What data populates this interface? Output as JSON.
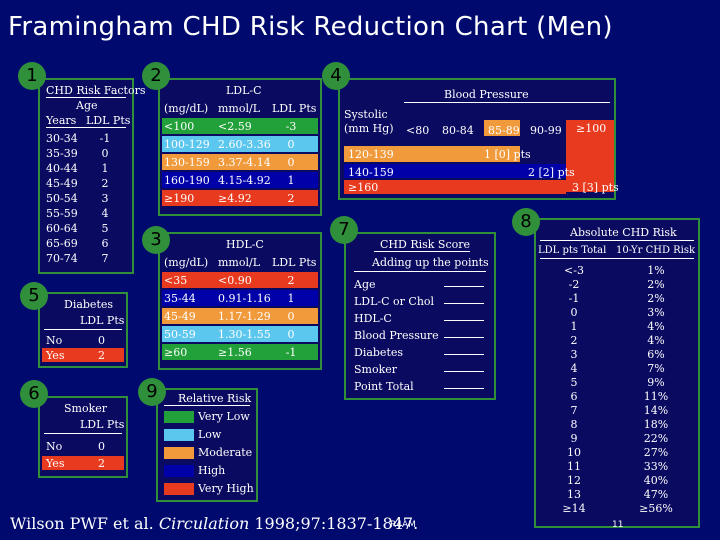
{
  "title": "Framingham CHD Risk Reduction Chart (Men)",
  "colors": {
    "very_low": "#22a03a",
    "low": "#5bc6ee",
    "moderate": "#f09a3c",
    "high": "#0000a8",
    "very_high": "#e83a1e"
  },
  "badges": [
    "1",
    "2",
    "3",
    "4",
    "5",
    "6",
    "7",
    "8",
    "9"
  ],
  "box1": {
    "heading": "CHD Risk Factors",
    "sub": "Age",
    "col1": "Years",
    "col2": "LDL Pts",
    "rows": [
      {
        "age": "30-34",
        "pts": "-1"
      },
      {
        "age": "35-39",
        "pts": "0"
      },
      {
        "age": "40-44",
        "pts": "1"
      },
      {
        "age": "45-49",
        "pts": "2"
      },
      {
        "age": "50-54",
        "pts": "3"
      },
      {
        "age": "55-59",
        "pts": "4"
      },
      {
        "age": "60-64",
        "pts": "5"
      },
      {
        "age": "65-69",
        "pts": "6"
      },
      {
        "age": "70-74",
        "pts": "7"
      }
    ]
  },
  "box2": {
    "heading": "LDL-C",
    "cols": [
      "(mg/dL)",
      "mmol/L",
      "LDL Pts"
    ],
    "rows": [
      {
        "mg": "<100",
        "mmol": "<2.59",
        "pts": "-3",
        "color": "#22a03a"
      },
      {
        "mg": "100-129",
        "mmol": "2.60-3.36",
        "pts": "0",
        "color": "#5bc6ee"
      },
      {
        "mg": "130-159",
        "mmol": "3.37-4.14",
        "pts": "0",
        "color": "#f09a3c"
      },
      {
        "mg": "160-190",
        "mmol": "4.15-4.92",
        "pts": "1",
        "color": "#0000a8"
      },
      {
        "mg": "≥190",
        "mmol": "≥4.92",
        "pts": "2",
        "color": "#e83a1e"
      }
    ]
  },
  "box3": {
    "heading": "HDL-C",
    "cols": [
      "(mg/dL)",
      "mmol/L",
      "LDL Pts"
    ],
    "rows": [
      {
        "mg": "<35",
        "mmol": "<0.90",
        "pts": "2",
        "color": "#e83a1e"
      },
      {
        "mg": "35-44",
        "mmol": "0.91-1.16",
        "pts": "1",
        "color": "#0000a8"
      },
      {
        "mg": "45-49",
        "mmol": "1.17-1.29",
        "pts": "0",
        "color": "#f09a3c"
      },
      {
        "mg": "50-59",
        "mmol": "1.30-1.55",
        "pts": "0",
        "color": "#5bc6ee"
      },
      {
        "mg": "≥60",
        "mmol": "≥1.56",
        "pts": "-1",
        "color": "#22a03a"
      }
    ]
  },
  "box4": {
    "heading": "Blood Pressure",
    "row_label1": "Systolic",
    "row_label2": "(mm Hg)",
    "cols": [
      "<80",
      "80-84",
      "85-89",
      "90-99",
      "≥100"
    ],
    "rows": [
      "120-139",
      "140-159",
      "≥160"
    ],
    "pts": [
      "1 [0] pts",
      "2 [2] pts",
      "3 [3] pts"
    ]
  },
  "box5": {
    "heading": "Diabetes",
    "col": "LDL Pts",
    "rows": [
      {
        "k": "No",
        "v": "0"
      },
      {
        "k": "Yes",
        "v": "2"
      }
    ]
  },
  "box6": {
    "heading": "Smoker",
    "col": "LDL Pts",
    "rows": [
      {
        "k": "No",
        "v": "0"
      },
      {
        "k": "Yes",
        "v": "2"
      }
    ]
  },
  "box7": {
    "heading": "CHD Risk Score",
    "sub": "Adding up the points",
    "items": [
      "Age",
      "LDL-C or Chol",
      "HDL-C",
      "Blood Pressure",
      "Diabetes",
      "Smoker",
      "Point Total"
    ]
  },
  "box8": {
    "heading": "Absolute CHD Risk",
    "col1": "LDL pts Total",
    "col2": "10-Yr CHD Risk",
    "rows": [
      {
        "p": "<-3",
        "r": "1%"
      },
      {
        "p": "-2",
        "r": "2%"
      },
      {
        "p": "-1",
        "r": "2%"
      },
      {
        "p": "0",
        "r": "3%"
      },
      {
        "p": "1",
        "r": "4%"
      },
      {
        "p": "2",
        "r": "4%"
      },
      {
        "p": "3",
        "r": "6%"
      },
      {
        "p": "4",
        "r": "7%"
      },
      {
        "p": "5",
        "r": "9%"
      },
      {
        "p": "6",
        "r": "11%"
      },
      {
        "p": "7",
        "r": "14%"
      },
      {
        "p": "8",
        "r": "18%"
      },
      {
        "p": "9",
        "r": "22%"
      },
      {
        "p": "10",
        "r": "27%"
      },
      {
        "p": "11",
        "r": "33%"
      },
      {
        "p": "12",
        "r": "40%"
      },
      {
        "p": "13",
        "r": "47%"
      },
      {
        "p": "≥14",
        "r": "≥56%"
      }
    ]
  },
  "box9": {
    "heading": "Relative Risk",
    "items": [
      {
        "label": "Very Low",
        "color": "#22a03a"
      },
      {
        "label": "Low",
        "color": "#5bc6ee"
      },
      {
        "label": "Moderate",
        "color": "#f09a3c"
      },
      {
        "label": "High",
        "color": "#0000a8"
      },
      {
        "label": "Very High",
        "color": "#e83a1e"
      }
    ]
  },
  "footer": {
    "authors": "Wilson PWF et al.",
    "journal": "Circulation",
    "citation": "1998;97:1837-1847.",
    "overlay": "R4AM",
    "page": "11"
  }
}
